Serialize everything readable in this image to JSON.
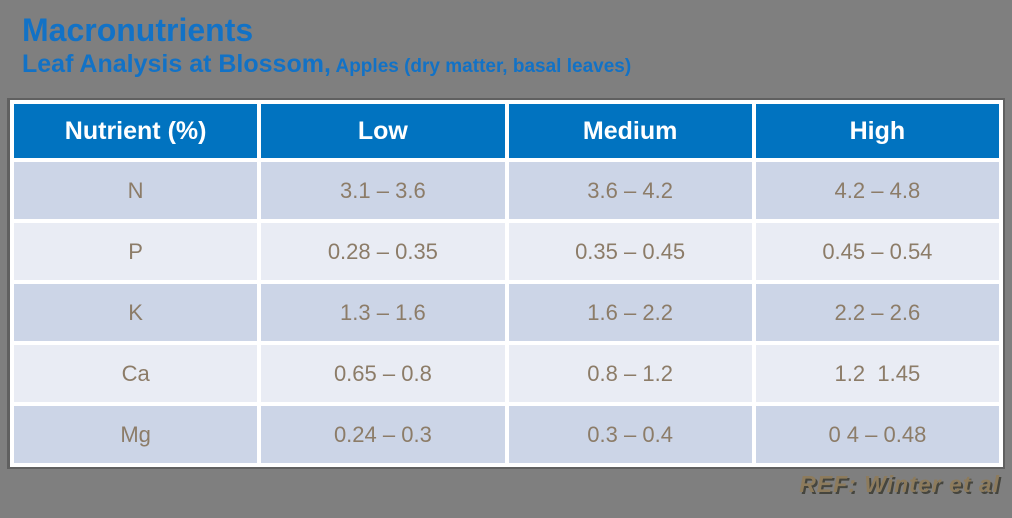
{
  "header": {
    "title": "Macronutrients",
    "subtitle_main": "Leaf Analysis at Blossom,",
    "subtitle_detail": " Apples (dry matter, basal leaves)"
  },
  "table": {
    "headers": [
      "Nutrient (%)",
      "Low",
      "Medium",
      "High"
    ],
    "rows": [
      [
        "N",
        "3.1 – 3.6",
        "3.6 – 4.2",
        "4.2 – 4.8"
      ],
      [
        "P",
        "0.28 – 0.35",
        "0.35 – 0.45",
        "0.45 – 0.54"
      ],
      [
        "K",
        "1.3 – 1.6",
        "1.6 – 2.2",
        "2.2 – 2.6"
      ],
      [
        "Ca",
        "0.65 – 0.8",
        "0.8 – 1.2",
        "1.2  1.45"
      ],
      [
        "Mg",
        "0.24 – 0.3",
        "0.3 – 0.4",
        "0 4 – 0.48"
      ]
    ]
  },
  "footer": {
    "reference": "REF: Winter et al"
  },
  "colors": {
    "background": "#7f7f7f",
    "title_blue": "#1272c6",
    "header_bg": "#0173c0",
    "header_text": "#ffffff",
    "row_dark": "#ccd5e7",
    "row_light": "#e9ecf4",
    "cell_text": "#8c7c68",
    "reference_text": "#8d7b5c"
  }
}
